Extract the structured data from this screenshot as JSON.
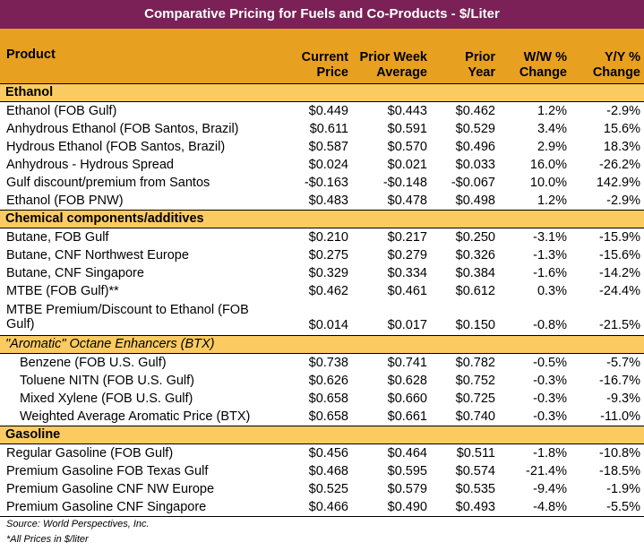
{
  "title": "Comparative Pricing for Fuels and Co-Products - $/Liter",
  "headers": {
    "product": "Product",
    "current_price": "Current Price",
    "prior_week_average": "Prior Week Average",
    "prior_year": "Prior Year",
    "ww_change": "W/W % Change",
    "yy_change": "Y/Y % Change"
  },
  "sections": [
    {
      "label": "Ethanol",
      "rows": [
        {
          "product": "Ethanol (FOB Gulf)",
          "current": "$0.449",
          "prior_week": "$0.443",
          "prior_year": "$0.462",
          "ww": "1.2%",
          "yy": "-2.9%"
        },
        {
          "product": "Anhydrous Ethanol (FOB Santos, Brazil)",
          "current": "$0.611",
          "prior_week": "$0.591",
          "prior_year": "$0.529",
          "ww": "3.4%",
          "yy": "15.6%"
        },
        {
          "product": "Hydrous Ethanol (FOB Santos, Brazil)",
          "current": "$0.587",
          "prior_week": "$0.570",
          "prior_year": "$0.496",
          "ww": "2.9%",
          "yy": "18.3%"
        },
        {
          "product": "Anhydrous - Hydrous Spread",
          "current": "$0.024",
          "prior_week": "$0.021",
          "prior_year": "$0.033",
          "ww": "16.0%",
          "yy": "-26.2%"
        },
        {
          "product": "Gulf discount/premium from Santos",
          "current": "-$0.163",
          "prior_week": "-$0.148",
          "prior_year": "-$0.067",
          "ww": "10.0%",
          "yy": "142.9%"
        },
        {
          "product": "Ethanol (FOB PNW)",
          "current": "$0.483",
          "prior_week": "$0.478",
          "prior_year": "$0.498",
          "ww": "1.2%",
          "yy": "-2.9%"
        }
      ]
    },
    {
      "label": "Chemical components/additives",
      "rows": [
        {
          "product": "Butane, FOB Gulf",
          "current": "$0.210",
          "prior_week": "$0.217",
          "prior_year": "$0.250",
          "ww": "-3.1%",
          "yy": "-15.9%"
        },
        {
          "product": "Butane, CNF Northwest Europe",
          "current": "$0.275",
          "prior_week": "$0.279",
          "prior_year": "$0.326",
          "ww": "-1.3%",
          "yy": "-15.6%"
        },
        {
          "product": "Butane, CNF Singapore",
          "current": "$0.329",
          "prior_week": "$0.334",
          "prior_year": "$0.384",
          "ww": "-1.6%",
          "yy": "-14.2%"
        },
        {
          "product": "MTBE (FOB Gulf)**",
          "current": "$0.462",
          "prior_week": "$0.461",
          "prior_year": "$0.612",
          "ww": "0.3%",
          "yy": "-24.4%"
        },
        {
          "product": "MTBE Premium/Discount to Ethanol (FOB Gulf)",
          "current": "$0.014",
          "prior_week": "$0.017",
          "prior_year": "$0.150",
          "ww": "-0.8%",
          "yy": "-21.5%"
        }
      ]
    },
    {
      "label": "\"Aromatic\" Octane Enhancers (BTX)",
      "rows": [
        {
          "product": "Benzene (FOB U.S. Gulf)",
          "current": "$0.738",
          "prior_week": "$0.741",
          "prior_year": "$0.782",
          "ww": "-0.5%",
          "yy": "-5.7%"
        },
        {
          "product": "Toluene NITN (FOB U.S. Gulf)",
          "current": "$0.626",
          "prior_week": "$0.628",
          "prior_year": "$0.752",
          "ww": "-0.3%",
          "yy": "-16.7%"
        },
        {
          "product": "Mixed Xylene (FOB U.S. Gulf)",
          "current": "$0.658",
          "prior_week": "$0.660",
          "prior_year": "$0.725",
          "ww": "-0.3%",
          "yy": "-9.3%"
        },
        {
          "product": "Weighted Average Aromatic Price (BTX)",
          "current": "$0.658",
          "prior_week": "$0.661",
          "prior_year": "$0.740",
          "ww": "-0.3%",
          "yy": "-11.0%"
        }
      ]
    },
    {
      "label": "Gasoline",
      "rows": [
        {
          "product": "Regular Gasoline (FOB Gulf)",
          "current": "$0.456",
          "prior_week": "$0.464",
          "prior_year": "$0.511",
          "ww": "-1.8%",
          "yy": "-10.8%"
        },
        {
          "product": "Premium Gasoline FOB Texas Gulf",
          "current": "$0.468",
          "prior_week": "$0.595",
          "prior_year": "$0.574",
          "ww": "-21.4%",
          "yy": "-18.5%"
        },
        {
          "product": "Premium Gasoline CNF NW Europe",
          "current": "$0.525",
          "prior_week": "$0.579",
          "prior_year": "$0.535",
          "ww": "-9.4%",
          "yy": "-1.9%"
        },
        {
          "product": "Premium Gasoline CNF Singapore",
          "current": "$0.466",
          "prior_week": "$0.490",
          "prior_year": "$0.493",
          "ww": "-4.8%",
          "yy": "-5.5%"
        }
      ]
    }
  ],
  "footer": {
    "source": "Source: World Perspectives, Inc.",
    "note": "*All Prices in $/liter"
  },
  "colors": {
    "title_bg": "#7B2157",
    "header_bg": "#E8A020",
    "section_bg": "#FBCB62"
  }
}
